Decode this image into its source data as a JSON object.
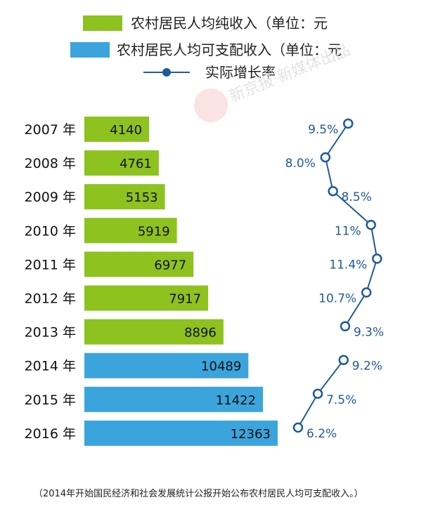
{
  "legend": {
    "green_label": "农村居民人均纯收入（单位：元",
    "blue_label": "农村居民人均可支配收入（单位：元",
    "line_label": "实际增长率"
  },
  "watermark": "新京报·新媒体出品",
  "note": "（2014年开始国民经济和社会发展统计公报开始公布农村居民人均可支配收入。）",
  "colors": {
    "green": "#8dc21f",
    "blue": "#3ba4dc",
    "line": "#1f5a9a"
  },
  "chart_data": {
    "type": "bar",
    "orientation": "horizontal",
    "categories": [
      "2007 年",
      "2008 年",
      "2009 年",
      "2010 年",
      "2011 年",
      "2012 年",
      "2013 年",
      "2014 年",
      "2015 年",
      "2016 年"
    ],
    "series": [
      {
        "name": "农村居民人均纯收入（单位：元",
        "color": "#8dc21f",
        "values": [
          4140,
          4761,
          5153,
          5919,
          6977,
          7917,
          8896,
          null,
          null,
          null
        ]
      },
      {
        "name": "农村居民人均可支配收入（单位：元",
        "color": "#3ba4dc",
        "values": [
          null,
          null,
          null,
          null,
          null,
          null,
          null,
          10489,
          11422,
          12363
        ]
      },
      {
        "name": "实际增长率",
        "type": "line",
        "color": "#1f5a9a",
        "values": [
          9.5,
          8.0,
          8.5,
          11,
          11.4,
          10.7,
          9.3,
          9.2,
          7.5,
          6.2
        ],
        "labels": [
          "9.5%",
          "8.0%",
          "8.5%",
          "11%",
          "11.4%",
          "10.7%",
          "9.3%",
          "9.2%",
          "7.5%",
          "6.2%"
        ],
        "segments": [
          [
            0,
            6
          ],
          [
            7,
            9
          ]
        ]
      }
    ],
    "value_labels": [
      "4140",
      "4761",
      "5153",
      "5919",
      "6977",
      "7917",
      "8896",
      "10489",
      "11422",
      "12363"
    ]
  }
}
